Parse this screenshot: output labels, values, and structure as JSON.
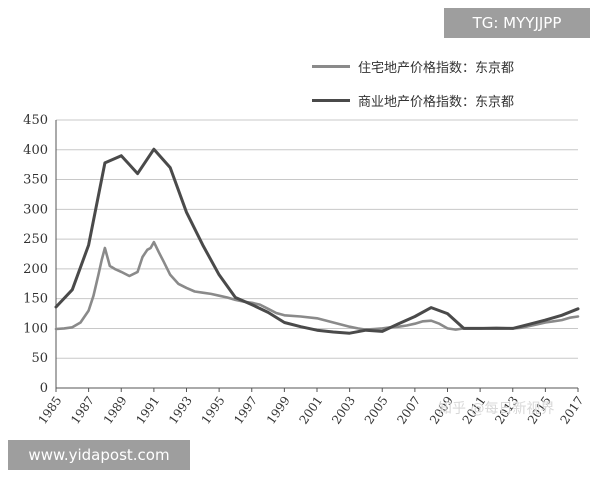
{
  "watermarks": {
    "telegram": "TG: MYYJJPP",
    "site": "www.yidapost.com",
    "zhihu": "知乎 @每日新视界"
  },
  "chart_data": {
    "type": "line",
    "title": "",
    "xlabel": "",
    "ylabel": "",
    "xlim": [
      1985,
      2017
    ],
    "ylim": [
      0,
      450
    ],
    "yticks": [
      0,
      50,
      100,
      150,
      200,
      250,
      300,
      350,
      400,
      450
    ],
    "xticks": [
      "1985",
      "1987",
      "1989",
      "1991",
      "1993",
      "1995",
      "1997",
      "1999",
      "2001",
      "2003",
      "2005",
      "2007",
      "2009",
      "2011",
      "2013",
      "2015",
      "2017"
    ],
    "grid": "horizontal",
    "legend_position": "top-right",
    "series": [
      {
        "name": "住宅地产价格指数：东京都",
        "color": "#8a8a8a",
        "x": [
          1985,
          1985.5,
          1986,
          1986.5,
          1987,
          1987.3,
          1987.6,
          1987.8,
          1988.0,
          1988.3,
          1988.6,
          1989,
          1989.5,
          1990,
          1990.3,
          1990.6,
          1990.8,
          1991,
          1991.3,
          1991.6,
          1992,
          1992.5,
          1993,
          1993.5,
          1994,
          1994.5,
          1995,
          1995.5,
          1996,
          1996.5,
          1997,
          1997.5,
          1998,
          1998.5,
          1999,
          2000,
          2001,
          2002,
          2003,
          2003.5,
          2004,
          2004.5,
          2005,
          2005.5,
          2006,
          2006.5,
          2007,
          2007.5,
          2008,
          2008.5,
          2009,
          2009.5,
          2010,
          2011,
          2012,
          2013,
          2013.5,
          2014,
          2014.5,
          2015,
          2015.5,
          2016,
          2016.5,
          2017
        ],
        "y": [
          99,
          100,
          102,
          110,
          130,
          155,
          190,
          215,
          235,
          205,
          200,
          195,
          188,
          195,
          220,
          232,
          235,
          245,
          228,
          212,
          190,
          175,
          168,
          162,
          160,
          158,
          155,
          152,
          148,
          145,
          143,
          140,
          133,
          126,
          122,
          120,
          117,
          110,
          103,
          100,
          98,
          99,
          100,
          102,
          103,
          105,
          108,
          112,
          113,
          108,
          100,
          98,
          100,
          100,
          101,
          100,
          101,
          104,
          107,
          110,
          112,
          114,
          118,
          120
        ]
      },
      {
        "name": "商业地产价格指数：东京都",
        "color": "#4a4a4a",
        "x": [
          1985,
          1986,
          1987,
          1988,
          1989,
          1990,
          1991,
          1992,
          1993,
          1994,
          1995,
          1996,
          1997,
          1998,
          1999,
          2000,
          2001,
          2002,
          2003,
          2004,
          2005,
          2006,
          2007,
          2008,
          2009,
          2010,
          2011,
          2012,
          2013,
          2014,
          2015,
          2016,
          2017
        ],
        "y": [
          136,
          165,
          240,
          378,
          390,
          360,
          401,
          370,
          295,
          240,
          190,
          152,
          140,
          127,
          110,
          103,
          97,
          94,
          92,
          97,
          95,
          108,
          120,
          135,
          125,
          100,
          100,
          100,
          100,
          107,
          114,
          122,
          133
        ]
      }
    ]
  }
}
